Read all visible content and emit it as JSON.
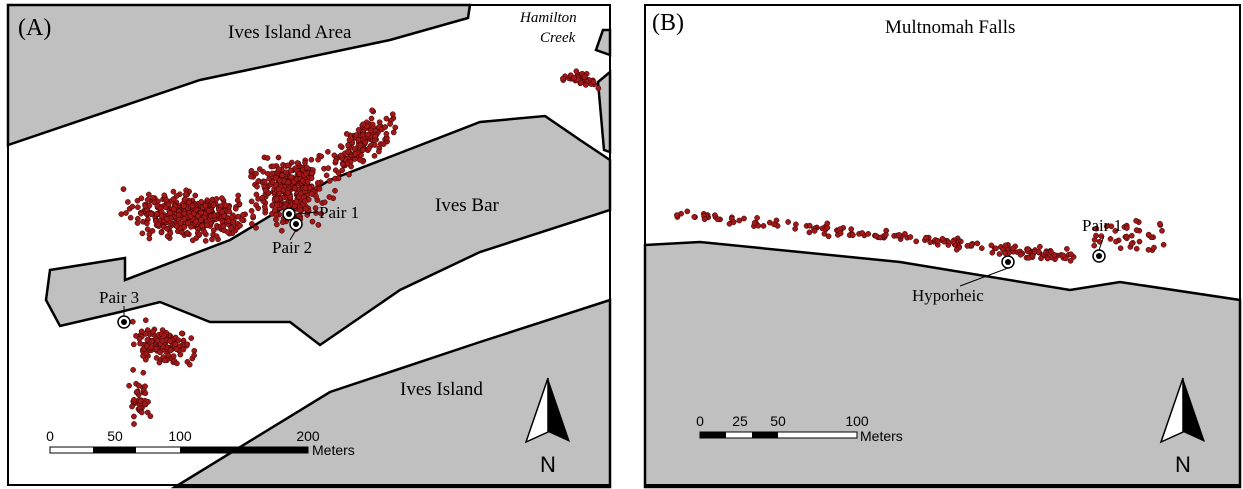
{
  "panels": [
    {
      "label": "(A)",
      "title": "Ives Island Area",
      "places": [
        "Hamilton",
        "Creek",
        "Ives Bar",
        "Ives Island"
      ],
      "sites": [
        "Pair 1",
        "Pair 2",
        "Pair 3"
      ],
      "scale": {
        "ticks": [
          "0",
          "50",
          "100",
          "200"
        ],
        "unit": "Meters"
      },
      "north": "N"
    },
    {
      "label": "(B)",
      "title": "Multnomah Falls",
      "places": [],
      "sites": [
        "Pair 1",
        "Hyporheic"
      ],
      "scale": {
        "ticks": [
          "0",
          "25",
          "50",
          "100"
        ],
        "unit": "Meters"
      },
      "north": "N"
    }
  ]
}
